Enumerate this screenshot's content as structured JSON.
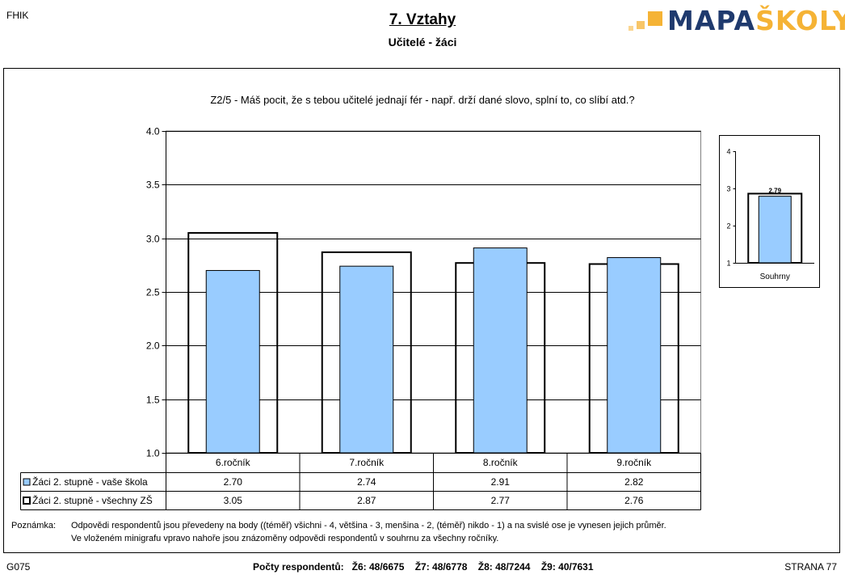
{
  "header": {
    "code_left": "FHIK",
    "title": "7. Vztahy",
    "subtitle": "Učitelé - žáci",
    "logo_part1": "MAPA",
    "logo_part2": "ŠKOLY"
  },
  "question": "Z2/5 - Máš pocit, že s tebou učitelé jednají fér - např. drží dané slovo, splní to, co slíbí atd.?",
  "note": {
    "label": "Poznámka:",
    "line1": "Odpovědi respondentů jsou převedeny na body ((téměř) všichni - 4, většina - 3, menšina - 2, (téměř) nikdo - 1) a na svislé ose je vynesen jejich průměr.",
    "line2": "Ve vloženém minigrafu vpravo nahoře jsou znázoměny odpovědi respondentů v souhrnu za všechny ročníky."
  },
  "footer": {
    "code_left": "G075",
    "respondents": "Počty respondentů:   Ž6: 48/6675    Ž7: 48/6778    Ž8: 48/7244    Ž9: 40/7631",
    "page": "STRANA 77"
  },
  "colors": {
    "school_fill": "#99ccff",
    "school_stroke": "#000000",
    "all_stroke": "#000000",
    "logo_dark": "#1f3a6e",
    "logo_accent": "#f5b335"
  },
  "chart_data": [
    {
      "type": "bar",
      "categories": [
        "6.ročník",
        "7.ročník",
        "8.ročník",
        "9.ročník"
      ],
      "series": [
        {
          "name": "Žáci 2. stupně - vaše škola",
          "values": [
            2.7,
            2.74,
            2.91,
            2.82
          ],
          "labels": [
            "2.70",
            "2.74",
            "2.91",
            "2.82"
          ]
        },
        {
          "name": "Žáci 2. stupně - všechny ZŠ",
          "values": [
            3.05,
            2.87,
            2.77,
            2.76
          ],
          "labels": [
            "3.05",
            "2.87",
            "2.77",
            "2.76"
          ]
        }
      ],
      "ylim": [
        1.0,
        4.0
      ],
      "yticks": [
        "1.0",
        "1.5",
        "2.0",
        "2.5",
        "3.0",
        "3.5",
        "4.0"
      ],
      "grid": true,
      "data_table": true
    },
    {
      "type": "bar",
      "categories": [
        "Souhrny"
      ],
      "series": [
        {
          "values": [
            2.79
          ],
          "labels": [
            "2.79"
          ]
        },
        {
          "values": [
            2.86
          ]
        }
      ],
      "ylim": [
        1,
        4
      ],
      "yticks": [
        "1",
        "2",
        "3",
        "4"
      ],
      "grid": false
    }
  ]
}
